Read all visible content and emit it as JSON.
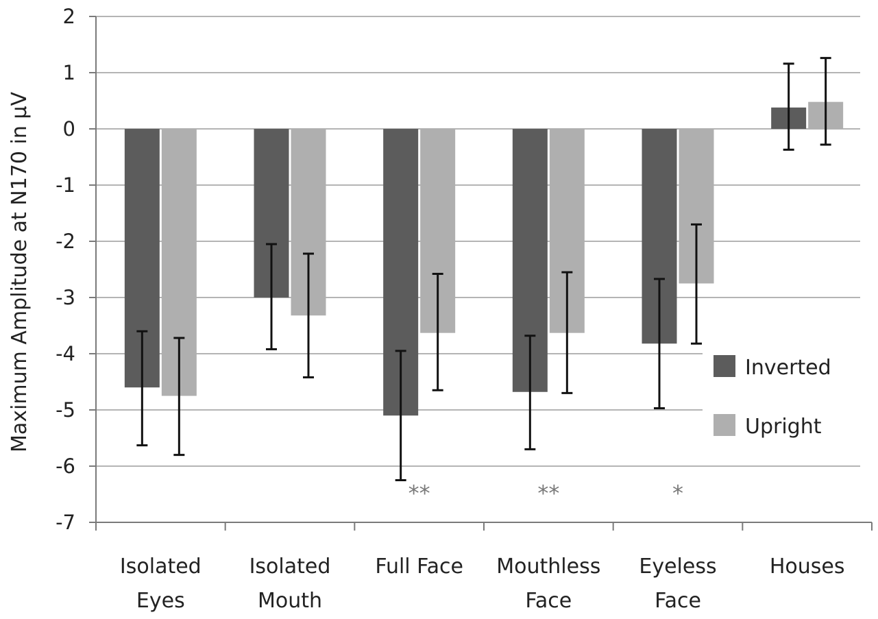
{
  "chart_data": {
    "type": "bar",
    "title": "",
    "xlabel": "",
    "ylabel": "Maximum Amplitude at N170 in μV",
    "ylim": [
      -7,
      2
    ],
    "yticks": [
      2,
      1,
      0,
      -1,
      -2,
      -3,
      -4,
      -5,
      -6,
      -7
    ],
    "grid": true,
    "legend_position": "right",
    "categories": [
      [
        "Isolated",
        "Eyes"
      ],
      [
        "Isolated",
        "Mouth"
      ],
      [
        "Full Face"
      ],
      [
        "Mouthless",
        "Face"
      ],
      [
        "Eyeless",
        "Face"
      ],
      [
        "Houses"
      ]
    ],
    "series": [
      {
        "name": "Inverted",
        "color": "#5c5c5c",
        "values": [
          -4.6,
          -3.0,
          -5.1,
          -4.68,
          -3.82,
          0.38
        ],
        "error_low": [
          -5.63,
          -3.92,
          -6.25,
          -5.7,
          -4.97,
          -0.37
        ],
        "error_high": [
          -3.6,
          -2.05,
          -3.95,
          -3.68,
          -2.67,
          1.16
        ]
      },
      {
        "name": "Upright",
        "color": "#afafaf",
        "values": [
          -4.75,
          -3.32,
          -3.63,
          -3.63,
          -2.75,
          0.48
        ],
        "error_low": [
          -5.8,
          -4.42,
          -4.65,
          -4.7,
          -3.82,
          -0.28
        ],
        "error_high": [
          -3.72,
          -2.22,
          -2.58,
          -2.55,
          -1.7,
          1.26
        ]
      }
    ],
    "annotations": [
      {
        "category_index": 2,
        "text": "**",
        "y": -6.35
      },
      {
        "category_index": 3,
        "text": "**",
        "y": -6.35
      },
      {
        "category_index": 4,
        "text": "*",
        "y": -6.35
      }
    ]
  }
}
